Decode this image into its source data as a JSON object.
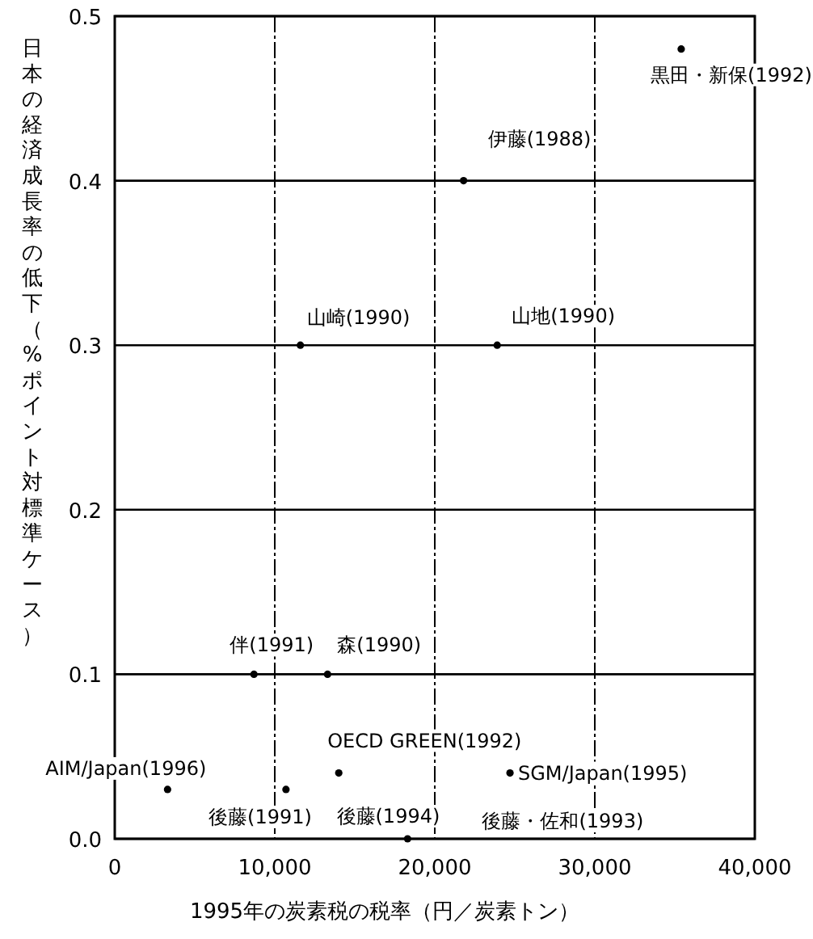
{
  "chart_data": {
    "type": "scatter",
    "xlabel": "1995年の炭素税の税率（円／炭素トン）",
    "ylabel": "日本の経済成長率の低下（%ポイント対標準ケース）",
    "x": [
      35400,
      21800,
      11600,
      23900,
      8700,
      13300,
      3300,
      10700,
      14000,
      18300,
      24700
    ],
    "series": [
      {
        "color": "#000000",
        "values": [
          0.48,
          0.4,
          0.3,
          0.3,
          0.1,
          0.1,
          0.03,
          0.03,
          0.04,
          0.0,
          0.04
        ]
      }
    ],
    "xlim": [
      0,
      40000
    ],
    "xticks": [
      0,
      {
        "value": 10000,
        "label": "10,000"
      },
      {
        "value": 20000,
        "label": "20,000"
      },
      {
        "value": 30000,
        "label": "30,000"
      },
      {
        "value": 40000,
        "label": "40,000"
      }
    ],
    "ylim": [
      0,
      0.5
    ],
    "yticks": [
      {
        "value": 0,
        "label": "0.0"
      },
      0.1,
      0.2,
      0.3,
      0.4,
      0.5
    ],
    "grid": true,
    "marker": "circle",
    "annotations": [
      {
        "text": "黒田・新保(1992)",
        "x": 35400,
        "y": 0.48
      },
      {
        "text": "伊藤(1988)",
        "x": 21800,
        "y": 0.4
      },
      {
        "text": "山崎(1990)",
        "x": 11600,
        "y": 0.3
      },
      {
        "text": "山地(1990)",
        "x": 23900,
        "y": 0.3
      },
      {
        "text": "伴(1991)",
        "x": 8700,
        "y": 0.1
      },
      {
        "text": "森(1990)",
        "x": 13300,
        "y": 0.1
      },
      {
        "text": "AIM/Japan(1996)",
        "x": 3300,
        "y": 0.03
      },
      {
        "text": "後藤(1991)",
        "x": 10700,
        "y": 0.03
      },
      {
        "text": "OECD GREEN(1992)",
        "x": 14000,
        "y": 0.04
      },
      {
        "text": "後藤(1994)",
        "x": 18300,
        "y": 0.0
      },
      {
        "text": "SGM/Japan(1995)",
        "x": 24700,
        "y": 0.04
      },
      "後藤・佐和(1993)"
    ]
  }
}
